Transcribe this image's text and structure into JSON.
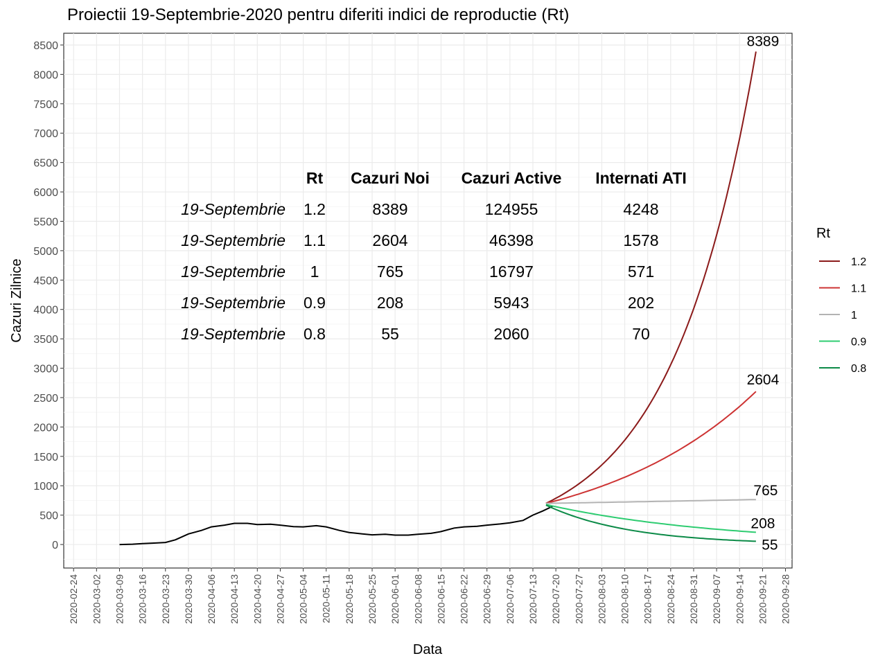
{
  "chart_data": {
    "type": "line",
    "title": "Proiectii 19-Septembrie-2020 pentru diferiti indici de reproductie (Rt)",
    "xlabel": "Data",
    "ylabel": "Cazuri Zilnice",
    "ylim": [
      -400,
      8700
    ],
    "xlim": [
      "2020-02-21",
      "2020-09-30"
    ],
    "grid": true,
    "legend_position": "right",
    "y_ticks": [
      0,
      500,
      1000,
      1500,
      2000,
      2500,
      3000,
      3500,
      4000,
      4500,
      5000,
      5500,
      6000,
      6500,
      7000,
      7500,
      8000,
      8500
    ],
    "x_ticks": [
      "2020-02-24",
      "2020-03-02",
      "2020-03-09",
      "2020-03-16",
      "2020-03-23",
      "2020-03-30",
      "2020-04-06",
      "2020-04-13",
      "2020-04-20",
      "2020-04-27",
      "2020-05-04",
      "2020-05-11",
      "2020-05-18",
      "2020-05-25",
      "2020-06-01",
      "2020-06-08",
      "2020-06-15",
      "2020-06-22",
      "2020-06-29",
      "2020-07-06",
      "2020-07-13",
      "2020-07-20",
      "2020-07-27",
      "2020-08-03",
      "2020-08-10",
      "2020-08-17",
      "2020-08-24",
      "2020-08-31",
      "2020-09-07",
      "2020-09-14",
      "2020-09-21",
      "2020-09-28"
    ],
    "legend": {
      "title": "Rt",
      "items": [
        {
          "label": "1.2",
          "color": "#8b1a1a"
        },
        {
          "label": "1.1",
          "color": "#cd3333"
        },
        {
          "label": "1",
          "color": "#b3b3b3"
        },
        {
          "label": "0.9",
          "color": "#2ecc71"
        },
        {
          "label": "0.8",
          "color": "#0b8a47"
        }
      ]
    },
    "historical": {
      "name": "",
      "color": "#000000",
      "points": [
        [
          "2020-03-09",
          0
        ],
        [
          "2020-03-13",
          5
        ],
        [
          "2020-03-16",
          15
        ],
        [
          "2020-03-20",
          25
        ],
        [
          "2020-03-23",
          35
        ],
        [
          "2020-03-26",
          80
        ],
        [
          "2020-03-30",
          180
        ],
        [
          "2020-04-03",
          240
        ],
        [
          "2020-04-06",
          300
        ],
        [
          "2020-04-10",
          330
        ],
        [
          "2020-04-13",
          360
        ],
        [
          "2020-04-17",
          360
        ],
        [
          "2020-04-20",
          340
        ],
        [
          "2020-04-24",
          345
        ],
        [
          "2020-04-27",
          330
        ],
        [
          "2020-05-01",
          305
        ],
        [
          "2020-05-04",
          300
        ],
        [
          "2020-05-08",
          320
        ],
        [
          "2020-05-11",
          300
        ],
        [
          "2020-05-15",
          240
        ],
        [
          "2020-05-18",
          205
        ],
        [
          "2020-05-22",
          180
        ],
        [
          "2020-05-25",
          165
        ],
        [
          "2020-05-29",
          175
        ],
        [
          "2020-06-01",
          160
        ],
        [
          "2020-06-05",
          160
        ],
        [
          "2020-06-08",
          175
        ],
        [
          "2020-06-12",
          190
        ],
        [
          "2020-06-15",
          220
        ],
        [
          "2020-06-19",
          280
        ],
        [
          "2020-06-22",
          300
        ],
        [
          "2020-06-26",
          310
        ],
        [
          "2020-06-29",
          330
        ],
        [
          "2020-07-03",
          350
        ],
        [
          "2020-07-06",
          370
        ],
        [
          "2020-07-10",
          410
        ],
        [
          "2020-07-13",
          500
        ],
        [
          "2020-07-16",
          570
        ],
        [
          "2020-07-19",
          650
        ]
      ]
    },
    "series": [
      {
        "name": "1.2",
        "color": "#8b1a1a",
        "start_date": "2020-07-17",
        "end_date": "2020-09-19",
        "start": 700,
        "end": 8389
      },
      {
        "name": "1.1",
        "color": "#cd3333",
        "start_date": "2020-07-17",
        "end_date": "2020-09-19",
        "start": 700,
        "end": 2604
      },
      {
        "name": "1",
        "color": "#b3b3b3",
        "start_date": "2020-07-17",
        "end_date": "2020-09-19",
        "start": 700,
        "end": 765
      },
      {
        "name": "0.9",
        "color": "#2ecc71",
        "start_date": "2020-07-17",
        "end_date": "2020-09-19",
        "start": 680,
        "end": 208
      },
      {
        "name": "0.8",
        "color": "#0b8a47",
        "start_date": "2020-07-17",
        "end_date": "2020-09-19",
        "start": 670,
        "end": 55
      }
    ],
    "end_labels": [
      {
        "text": "8389",
        "date": "2020-09-19",
        "value": 8389
      },
      {
        "text": "2604",
        "date": "2020-09-19",
        "value": 2604
      },
      {
        "text": "765",
        "date": "2020-09-19",
        "value": 765
      },
      {
        "text": "208",
        "date": "2020-09-19",
        "value": 208
      },
      {
        "text": "55",
        "date": "2020-09-19",
        "value": 55
      }
    ],
    "table": {
      "headers": [
        "Rt",
        "Cazuri Noi",
        "Cazuri Active",
        "Internati ATI"
      ],
      "rows": [
        {
          "date": "19-Septembrie",
          "rt": "1.2",
          "noi": "8389",
          "active": "124955",
          "ati": "4248"
        },
        {
          "date": "19-Septembrie",
          "rt": "1.1",
          "noi": "2604",
          "active": "46398",
          "ati": "1578"
        },
        {
          "date": "19-Septembrie",
          "rt": "1",
          "noi": "765",
          "active": "16797",
          "ati": "571"
        },
        {
          "date": "19-Septembrie",
          "rt": "0.9",
          "noi": "208",
          "active": "5943",
          "ati": "202"
        },
        {
          "date": "19-Septembrie",
          "rt": "0.8",
          "noi": "55",
          "active": "2060",
          "ati": "70"
        }
      ]
    }
  }
}
